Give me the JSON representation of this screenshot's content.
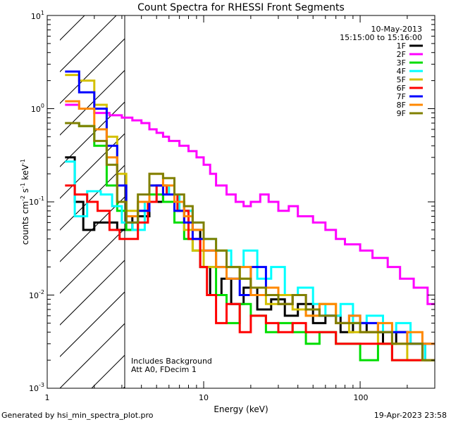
{
  "chart_data": {
    "type": "line",
    "title": "Count Spectra for RHESSI Front Segments",
    "xlabel": "Energy (keV)",
    "ylabel_parts": [
      "counts cm",
      "-2",
      " s",
      "-1",
      " keV",
      "-1"
    ],
    "xscale": "log",
    "yscale": "log",
    "xlim": [
      1,
      300
    ],
    "ylim": [
      0.001,
      10
    ],
    "x_tick_labels": [
      "1",
      "10",
      "100"
    ],
    "y_tick_labels": [
      {
        "base": "10",
        "exp": "-3"
      },
      {
        "base": "10",
        "exp": "-2"
      },
      {
        "base": "10",
        "exp": "-1"
      },
      {
        "base": "10",
        "exp": "0"
      },
      {
        "base": "10",
        "exp": "1"
      }
    ],
    "annotation_top_right": [
      "10-May-2013",
      "15:15:00 to 15:16:00"
    ],
    "annotation_bottom": [
      "Includes Background",
      "Att A0, FDecim 1"
    ],
    "hatched_region_x": [
      1.3,
      3
    ],
    "legend_position": "top-right",
    "series": [
      {
        "name": "1F",
        "color": "#000000",
        "x": [
          1.3,
          1.5,
          1.7,
          2.0,
          2.4,
          2.8,
          3.5,
          4.5,
          5.5,
          6.5,
          7.5,
          8.5,
          9.5,
          11,
          13,
          15,
          18,
          22,
          27,
          33,
          40,
          50,
          60,
          75,
          90,
          110,
          140,
          170,
          210,
          260
        ],
        "y": [
          0.3,
          0.1,
          0.05,
          0.06,
          0.06,
          0.05,
          0.07,
          0.1,
          0.12,
          0.1,
          0.08,
          0.05,
          0.02,
          0.01,
          0.015,
          0.008,
          0.012,
          0.007,
          0.009,
          0.006,
          0.008,
          0.005,
          0.006,
          0.004,
          0.005,
          0.004,
          0.003,
          0.004,
          0.003,
          0.002
        ]
      },
      {
        "name": "2F",
        "color": "#ff00ff",
        "x": [
          1.3,
          1.6,
          2.0,
          2.5,
          3.0,
          3.5,
          4.0,
          4.5,
          5.0,
          5.5,
          6.0,
          7.0,
          8.0,
          9.0,
          10,
          11,
          12,
          14,
          16,
          18,
          20,
          23,
          26,
          30,
          35,
          40,
          50,
          60,
          70,
          80,
          100,
          120,
          150,
          180,
          220,
          270
        ],
        "y": [
          1.1,
          1.0,
          0.9,
          0.85,
          0.8,
          0.75,
          0.7,
          0.6,
          0.55,
          0.5,
          0.45,
          0.4,
          0.35,
          0.3,
          0.25,
          0.2,
          0.15,
          0.12,
          0.1,
          0.09,
          0.1,
          0.12,
          0.1,
          0.08,
          0.09,
          0.07,
          0.06,
          0.05,
          0.04,
          0.035,
          0.03,
          0.025,
          0.02,
          0.015,
          0.012,
          0.008
        ]
      },
      {
        "name": "3F",
        "color": "#00dd00",
        "x": [
          1.3,
          1.6,
          2.0,
          2.4,
          2.8,
          3.2,
          3.8,
          4.5,
          5.5,
          6.5,
          7.5,
          8.5,
          10,
          12,
          14,
          17,
          20,
          25,
          30,
          37,
          45,
          55,
          70,
          85,
          100,
          130,
          160,
          200,
          250
        ],
        "y": [
          0.7,
          0.65,
          0.4,
          0.15,
          0.08,
          0.05,
          0.08,
          0.12,
          0.1,
          0.06,
          0.04,
          0.03,
          0.02,
          0.01,
          0.005,
          0.008,
          0.006,
          0.004,
          0.005,
          0.004,
          0.003,
          0.004,
          0.003,
          0.003,
          0.002,
          0.003,
          0.002,
          0.002,
          0.002
        ]
      },
      {
        "name": "4F",
        "color": "#00ffff",
        "x": [
          1.3,
          1.5,
          1.8,
          2.2,
          2.6,
          3.0,
          3.5,
          4.2,
          5.0,
          6.0,
          7.0,
          8.5,
          10,
          12,
          15,
          18,
          22,
          27,
          33,
          40,
          50,
          60,
          75,
          90,
          110,
          140,
          170,
          210,
          260
        ],
        "y": [
          0.27,
          0.07,
          0.13,
          0.12,
          0.09,
          0.06,
          0.05,
          0.1,
          0.15,
          0.12,
          0.08,
          0.06,
          0.04,
          0.03,
          0.02,
          0.03,
          0.015,
          0.02,
          0.01,
          0.012,
          0.008,
          0.006,
          0.008,
          0.005,
          0.006,
          0.004,
          0.005,
          0.003,
          0.002
        ]
      },
      {
        "name": "5F",
        "color": "#d4c000",
        "x": [
          1.3,
          1.6,
          2.0,
          2.4,
          2.8,
          3.2,
          3.8,
          4.5,
          5.5,
          6.5,
          7.5,
          8.5,
          10,
          12,
          14,
          17,
          20,
          25,
          30,
          37,
          45,
          55,
          70,
          85,
          100,
          130,
          160,
          200,
          250
        ],
        "y": [
          2.3,
          2.0,
          1.1,
          0.5,
          0.2,
          0.08,
          0.1,
          0.15,
          0.12,
          0.08,
          0.05,
          0.03,
          0.02,
          0.03,
          0.02,
          0.015,
          0.01,
          0.008,
          0.01,
          0.007,
          0.006,
          0.008,
          0.005,
          0.004,
          0.004,
          0.003,
          0.003,
          0.002,
          0.002
        ]
      },
      {
        "name": "6F",
        "color": "#ff0000",
        "x": [
          1.3,
          1.5,
          1.8,
          2.1,
          2.5,
          2.9,
          3.3,
          3.8,
          4.4,
          5.0,
          5.8,
          6.8,
          8.0,
          9.5,
          10.5,
          12,
          14,
          17,
          20,
          25,
          30,
          37,
          45,
          55,
          70,
          85,
          100,
          130,
          160,
          200,
          250
        ],
        "y": [
          0.15,
          0.12,
          0.1,
          0.08,
          0.05,
          0.04,
          0.04,
          0.06,
          0.1,
          0.15,
          0.12,
          0.08,
          0.04,
          0.02,
          0.01,
          0.005,
          0.008,
          0.004,
          0.006,
          0.005,
          0.004,
          0.005,
          0.004,
          0.004,
          0.003,
          0.003,
          0.003,
          0.003,
          0.002,
          0.002,
          0.002
        ]
      },
      {
        "name": "7F",
        "color": "#0000ff",
        "x": [
          1.3,
          1.6,
          2.0,
          2.4,
          2.8,
          3.2,
          3.8,
          4.5,
          5.5,
          6.5,
          7.5,
          8.5,
          10,
          12,
          14,
          17,
          20,
          25,
          30,
          37,
          45,
          55,
          70,
          85,
          100,
          130,
          160,
          200,
          250
        ],
        "y": [
          2.5,
          1.5,
          1.0,
          0.4,
          0.15,
          0.06,
          0.08,
          0.15,
          0.12,
          0.08,
          0.06,
          0.04,
          0.03,
          0.02,
          0.015,
          0.01,
          0.02,
          0.012,
          0.008,
          0.01,
          0.007,
          0.006,
          0.005,
          0.006,
          0.005,
          0.004,
          0.004,
          0.003,
          0.003
        ]
      },
      {
        "name": "8F",
        "color": "#ff8800",
        "x": [
          1.3,
          1.6,
          2.0,
          2.4,
          2.8,
          3.2,
          3.8,
          4.5,
          5.5,
          6.5,
          7.5,
          8.5,
          10,
          12,
          14,
          17,
          20,
          25,
          30,
          37,
          45,
          55,
          70,
          85,
          100,
          130,
          160,
          200,
          250
        ],
        "y": [
          1.2,
          1.0,
          0.6,
          0.3,
          0.1,
          0.07,
          0.1,
          0.2,
          0.15,
          0.1,
          0.07,
          0.05,
          0.03,
          0.02,
          0.015,
          0.02,
          0.01,
          0.012,
          0.008,
          0.01,
          0.006,
          0.008,
          0.005,
          0.006,
          0.004,
          0.005,
          0.003,
          0.004,
          0.003
        ]
      },
      {
        "name": "9F",
        "color": "#808000",
        "x": [
          1.3,
          1.6,
          2.0,
          2.4,
          2.8,
          3.2,
          3.8,
          4.5,
          5.5,
          6.5,
          7.5,
          8.5,
          10,
          12,
          14,
          17,
          20,
          25,
          30,
          37,
          45,
          55,
          70,
          85,
          100,
          130,
          160,
          200,
          250
        ],
        "y": [
          0.7,
          0.65,
          0.45,
          0.25,
          0.1,
          0.06,
          0.12,
          0.2,
          0.18,
          0.12,
          0.09,
          0.06,
          0.04,
          0.03,
          0.02,
          0.015,
          0.012,
          0.01,
          0.008,
          0.01,
          0.007,
          0.006,
          0.005,
          0.005,
          0.004,
          0.004,
          0.003,
          0.003,
          0.002
        ]
      }
    ]
  },
  "footer": {
    "left": "Generated by hsi_min_spectra_plot.pro",
    "right": "19-Apr-2023 23:58"
  }
}
